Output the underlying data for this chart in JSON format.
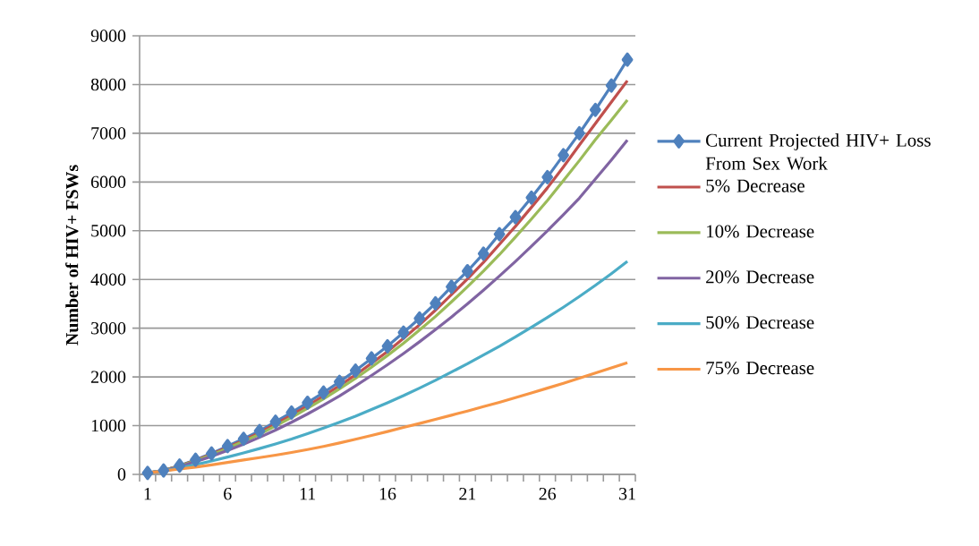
{
  "chart_data": {
    "type": "line",
    "ylabel": "Number of HIV+ FSWs",
    "categories": [
      "1",
      null,
      null,
      null,
      null,
      "6",
      null,
      null,
      null,
      null,
      "11",
      null,
      null,
      null,
      null,
      "16",
      null,
      null,
      null,
      null,
      "21",
      null,
      null,
      null,
      null,
      "26",
      null,
      null,
      null,
      null,
      "31"
    ],
    "ylim": [
      0,
      9000
    ],
    "yticks": [
      0,
      1000,
      2000,
      3000,
      4000,
      5000,
      6000,
      7000,
      8000,
      9000
    ],
    "grid": "y",
    "legend": "right",
    "line_style": "solid",
    "series": [
      {
        "name": "Current Projected HIV+ Loss From Sex Work",
        "color": "#4f81bd",
        "marker": "diamond",
        "values": [
          30,
          80,
          180,
          300,
          430,
          580,
          730,
          890,
          1080,
          1270,
          1470,
          1680,
          1900,
          2130,
          2380,
          2630,
          2910,
          3200,
          3510,
          3850,
          4170,
          4530,
          4930,
          5280,
          5680,
          6100,
          6550,
          7000,
          7480,
          7980,
          8510
        ]
      },
      {
        "name": "5% Decrease",
        "color": "#c0504d",
        "marker": "none",
        "values": [
          30,
          80,
          175,
          290,
          415,
          555,
          700,
          855,
          1035,
          1215,
          1405,
          1610,
          1820,
          2040,
          2280,
          2520,
          2790,
          3070,
          3370,
          3690,
          4010,
          4350,
          4720,
          5090,
          5480,
          5880,
          6310,
          6760,
          7200,
          7640,
          8080
        ]
      },
      {
        "name": "10% Decrease",
        "color": "#9bbb59",
        "marker": "none",
        "values": [
          30,
          80,
          170,
          280,
          400,
          535,
          675,
          825,
          995,
          1170,
          1355,
          1550,
          1755,
          1970,
          2200,
          2440,
          2690,
          2960,
          3240,
          3540,
          3850,
          4170,
          4510,
          4870,
          5240,
          5620,
          6030,
          6440,
          6870,
          7270,
          7680
        ]
      },
      {
        "name": "20% Decrease",
        "color": "#8064a2",
        "marker": "none",
        "values": [
          30,
          75,
          160,
          260,
          370,
          490,
          620,
          760,
          910,
          1070,
          1240,
          1420,
          1610,
          1815,
          2030,
          2250,
          2480,
          2720,
          2970,
          3230,
          3500,
          3780,
          4070,
          4370,
          4680,
          5000,
          5330,
          5670,
          6060,
          6450,
          6860
        ]
      },
      {
        "name": "50% Decrease",
        "color": "#4bacc6",
        "marker": "none",
        "values": [
          30,
          70,
          130,
          200,
          275,
          355,
          440,
          530,
          625,
          725,
          835,
          950,
          1070,
          1195,
          1330,
          1470,
          1615,
          1770,
          1930,
          2100,
          2270,
          2450,
          2630,
          2820,
          3020,
          3220,
          3430,
          3650,
          3880,
          4120,
          4370
        ]
      },
      {
        "name": "75% Decrease",
        "color": "#f79646",
        "marker": "none",
        "values": [
          30,
          70,
          110,
          150,
          195,
          245,
          295,
          345,
          395,
          450,
          510,
          575,
          645,
          720,
          800,
          880,
          965,
          1045,
          1130,
          1215,
          1300,
          1390,
          1480,
          1575,
          1670,
          1770,
          1870,
          1975,
          2080,
          2185,
          2290
        ]
      }
    ]
  }
}
